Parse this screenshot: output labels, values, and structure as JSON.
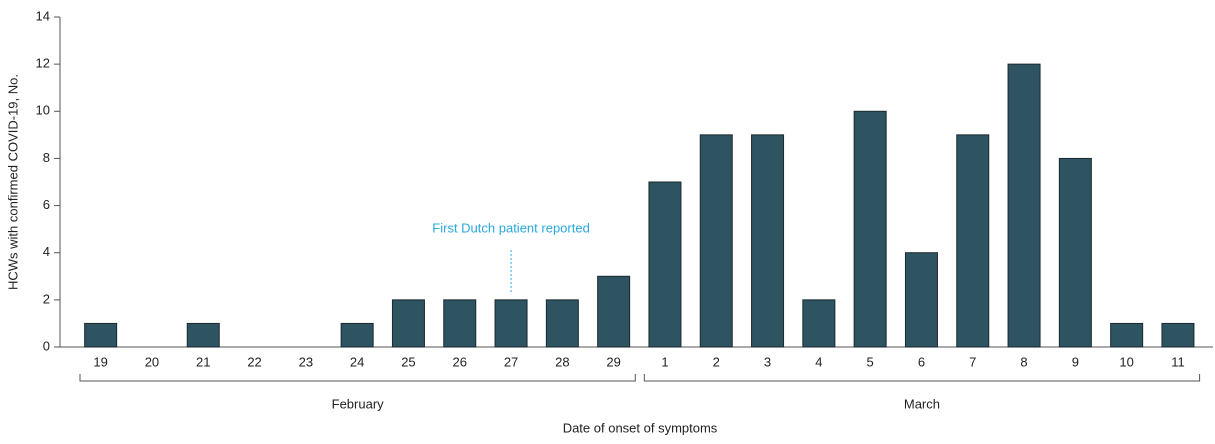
{
  "chart_data": {
    "type": "bar",
    "x_label": "Date of onset of symptoms",
    "y_label": "HCWs with confirmed COVID-19, No.",
    "color": "#2e5361",
    "groups": [
      {
        "label": "February",
        "categories": [
          "19",
          "20",
          "21",
          "22",
          "23",
          "24",
          "25",
          "26",
          "27",
          "28",
          "29"
        ],
        "values": [
          1,
          0,
          1,
          0,
          0,
          1,
          2,
          2,
          2,
          2,
          3
        ]
      },
      {
        "label": "March",
        "categories": [
          "1",
          "2",
          "3",
          "4",
          "5",
          "6",
          "7",
          "8",
          "9",
          "10",
          "11"
        ],
        "values": [
          7,
          9,
          9,
          2,
          10,
          4,
          9,
          12,
          8,
          1,
          1
        ]
      }
    ],
    "annotation": "First Dutch patient reported",
    "ylim": [
      0,
      14
    ],
    "yticks": [
      0,
      2,
      4,
      6,
      8,
      10,
      12,
      14
    ]
  }
}
